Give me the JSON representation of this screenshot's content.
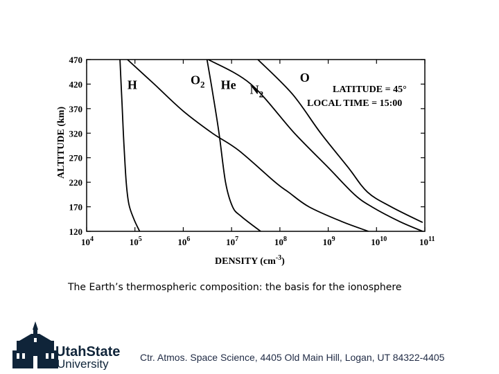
{
  "chart_data": {
    "type": "line",
    "xlabel": "DENSITY (cm",
    "xlabel_sup": "-3",
    "xlabel_close": ")",
    "ylabel": "ALTITUDE (km)",
    "xscale": "log",
    "xlim": [
      10000,
      100000000000
    ],
    "ylim": [
      120,
      470
    ],
    "x_ticks": [
      {
        "value": 10000,
        "base": "10",
        "exp": "4"
      },
      {
        "value": 100000,
        "base": "10",
        "exp": "5"
      },
      {
        "value": 1000000,
        "base": "10",
        "exp": "6"
      },
      {
        "value": 10000000,
        "base": "10",
        "exp": "7"
      },
      {
        "value": 100000000,
        "base": "10",
        "exp": "8"
      },
      {
        "value": 1000000000,
        "base": "10",
        "exp": "9"
      },
      {
        "value": 10000000000,
        "base": "10",
        "exp": "10"
      },
      {
        "value": 100000000000,
        "base": "10",
        "exp": "11"
      }
    ],
    "y_ticks": [
      120,
      170,
      220,
      270,
      320,
      370,
      420,
      470
    ],
    "grid": false,
    "series": [
      {
        "name": "H",
        "label_main": "H",
        "label_sub": "",
        "label_at": [
          70000,
          410
        ],
        "points": [
          [
            125000,
            120
          ],
          [
            95000,
            145
          ],
          [
            75000,
            175
          ],
          [
            66000,
            220
          ],
          [
            59000,
            300
          ],
          [
            54000,
            380
          ],
          [
            49000,
            470
          ]
        ]
      },
      {
        "name": "O2",
        "label_main": "O",
        "label_sub": "2",
        "label_at": [
          1420000,
          420
        ],
        "points": [
          [
            6800000000,
            120
          ],
          [
            1900000000,
            140
          ],
          [
            400000000,
            170
          ],
          [
            150000000,
            200
          ],
          [
            80000000,
            220
          ],
          [
            14000000,
            285
          ],
          [
            4000000,
            320
          ],
          [
            1000000,
            365
          ],
          [
            250000,
            420
          ],
          [
            70000,
            470
          ]
        ]
      },
      {
        "name": "He",
        "label_main": "He",
        "label_sub": "",
        "label_at": [
          6000000,
          410
        ],
        "points": [
          [
            40000000,
            120
          ],
          [
            16000000,
            150
          ],
          [
            10500000,
            170
          ],
          [
            7500000,
            220
          ],
          [
            5500000,
            320
          ],
          [
            4100000,
            400
          ],
          [
            3100000,
            470
          ]
        ]
      },
      {
        "name": "N2",
        "label_main": "N",
        "label_sub": "2",
        "label_at": [
          24000000,
          400
        ],
        "points": [
          [
            90000000000,
            120
          ],
          [
            30000000000,
            140
          ],
          [
            8000000000,
            170
          ],
          [
            3500000000,
            195
          ],
          [
            1000000000,
            250
          ],
          [
            200000000,
            320
          ],
          [
            25000000,
            420
          ],
          [
            3300000,
            470
          ]
        ]
      },
      {
        "name": "O",
        "label_main": "O",
        "label_sub": "",
        "label_at": [
          260000000,
          425
        ],
        "points": [
          [
            90000000000,
            138
          ],
          [
            20000000000,
            170
          ],
          [
            6500000000,
            200
          ],
          [
            2600000000,
            250
          ],
          [
            700000000,
            320
          ],
          [
            180000000,
            400
          ],
          [
            35000000,
            470
          ]
        ]
      }
    ],
    "annotations": [
      "LATITUDE = 45°",
      "LOCAL TIME = 15:00"
    ]
  },
  "caption": "The Earth’s thermospheric composition: the basis for the ionosphere",
  "footer": "Ctr. Atmos. Space Science, 4405 Old Main Hill, Logan, UT  84322-4405",
  "logo": {
    "line1": "UtahState",
    "line2": "University",
    "color": "#0f2439"
  }
}
